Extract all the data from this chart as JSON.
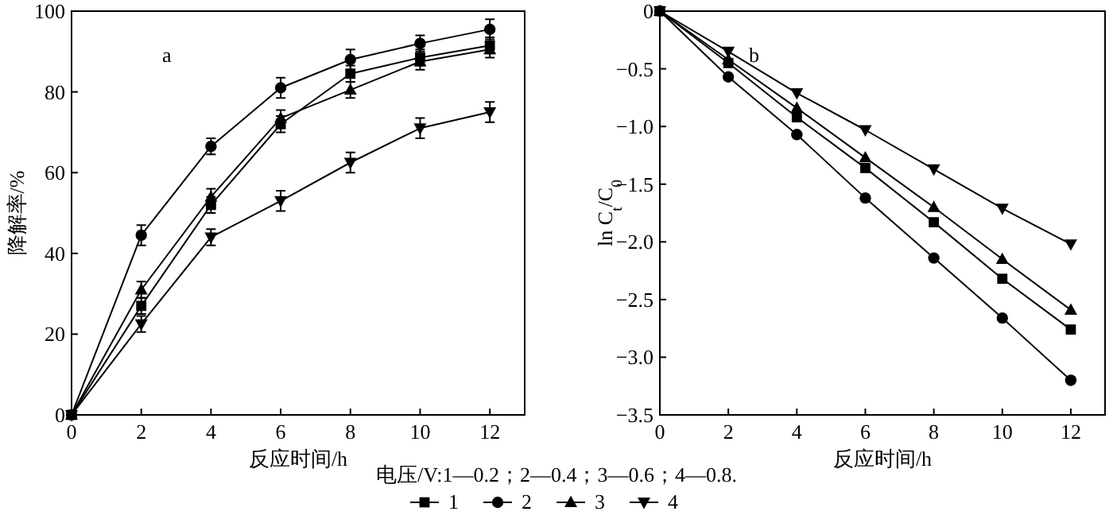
{
  "chart_data": [
    {
      "type": "line",
      "xlabel": "反应时间/h",
      "ylabel": "降解率/%",
      "annotations": [
        "a"
      ],
      "legend": "bottom",
      "legend_title": "电压/V:1—0.2；2—0.4；3—0.6；4—0.8.",
      "x": [
        0,
        2,
        4,
        6,
        8,
        10,
        12
      ],
      "xlim": [
        0,
        13
      ],
      "xticks": [
        0,
        2,
        4,
        6,
        8,
        10,
        12
      ],
      "ylim": [
        0,
        100
      ],
      "yticks": [
        0,
        20,
        40,
        60,
        80,
        100
      ],
      "grid": false,
      "line_style": "solid",
      "series": [
        {
          "name": "1",
          "color": "#000000",
          "marker": "square",
          "values": [
            0,
            27,
            52,
            72,
            84.5,
            88.5,
            91.5
          ],
          "errors": [
            null,
            2,
            2,
            2,
            2,
            2,
            2
          ]
        },
        {
          "name": "2",
          "color": "#000000",
          "marker": "circle",
          "values": [
            0,
            44.5,
            66.5,
            81,
            88,
            92,
            95.5
          ],
          "errors": [
            null,
            2.5,
            2,
            2.5,
            2.5,
            2,
            2.5
          ]
        },
        {
          "name": "3",
          "color": "#000000",
          "marker": "triangle",
          "values": [
            0,
            31,
            54,
            73.5,
            80.5,
            87.5,
            90.5
          ],
          "errors": [
            null,
            2,
            2,
            2,
            2,
            2,
            2
          ]
        },
        {
          "name": "4",
          "color": "#000000",
          "marker": "triangle-down",
          "values": [
            0,
            22.5,
            44,
            53,
            62.5,
            71,
            75
          ],
          "errors": [
            null,
            2,
            2,
            2.5,
            2.5,
            2.5,
            2.5
          ]
        }
      ]
    },
    {
      "type": "line",
      "xlabel": "反应时间/h",
      "ylabel": "ln C$_{t}$/C$_{0}$",
      "annotations": [
        "b"
      ],
      "x": [
        0,
        2,
        4,
        6,
        8,
        10,
        12
      ],
      "xlim": [
        0,
        13
      ],
      "xticks": [
        0,
        2,
        4,
        6,
        8,
        10,
        12
      ],
      "ylim": [
        -3.5,
        0
      ],
      "yticks": [
        {
          "value": -3.5,
          "label": "−3.5"
        },
        {
          "value": -3,
          "label": "−3.0"
        },
        {
          "value": -2.5,
          "label": "−2.5"
        },
        {
          "value": -2,
          "label": "−2.0"
        },
        {
          "value": -1.5,
          "label": "−1.5"
        },
        {
          "value": -1,
          "label": "−1.0"
        },
        {
          "value": -0.5,
          "label": "−0.5"
        },
        0
      ],
      "grid": false,
      "line_style": "solid",
      "series": [
        {
          "color": "#000000",
          "marker": "square",
          "values": [
            0,
            -0.45,
            -0.92,
            -1.36,
            -1.83,
            -2.32,
            -2.76
          ]
        },
        {
          "color": "#000000",
          "marker": "circle",
          "values": [
            0,
            -0.57,
            -1.07,
            -1.62,
            -2.14,
            -2.66,
            -3.2
          ]
        },
        {
          "color": "#000000",
          "marker": "triangle",
          "values": [
            0,
            -0.42,
            -0.84,
            -1.27,
            -1.7,
            -2.15,
            -2.59
          ]
        },
        {
          "color": "#000000",
          "marker": "triangle-down",
          "values": [
            0,
            -0.35,
            -0.71,
            -1.03,
            -1.37,
            -1.71,
            -2.02
          ]
        }
      ]
    }
  ]
}
